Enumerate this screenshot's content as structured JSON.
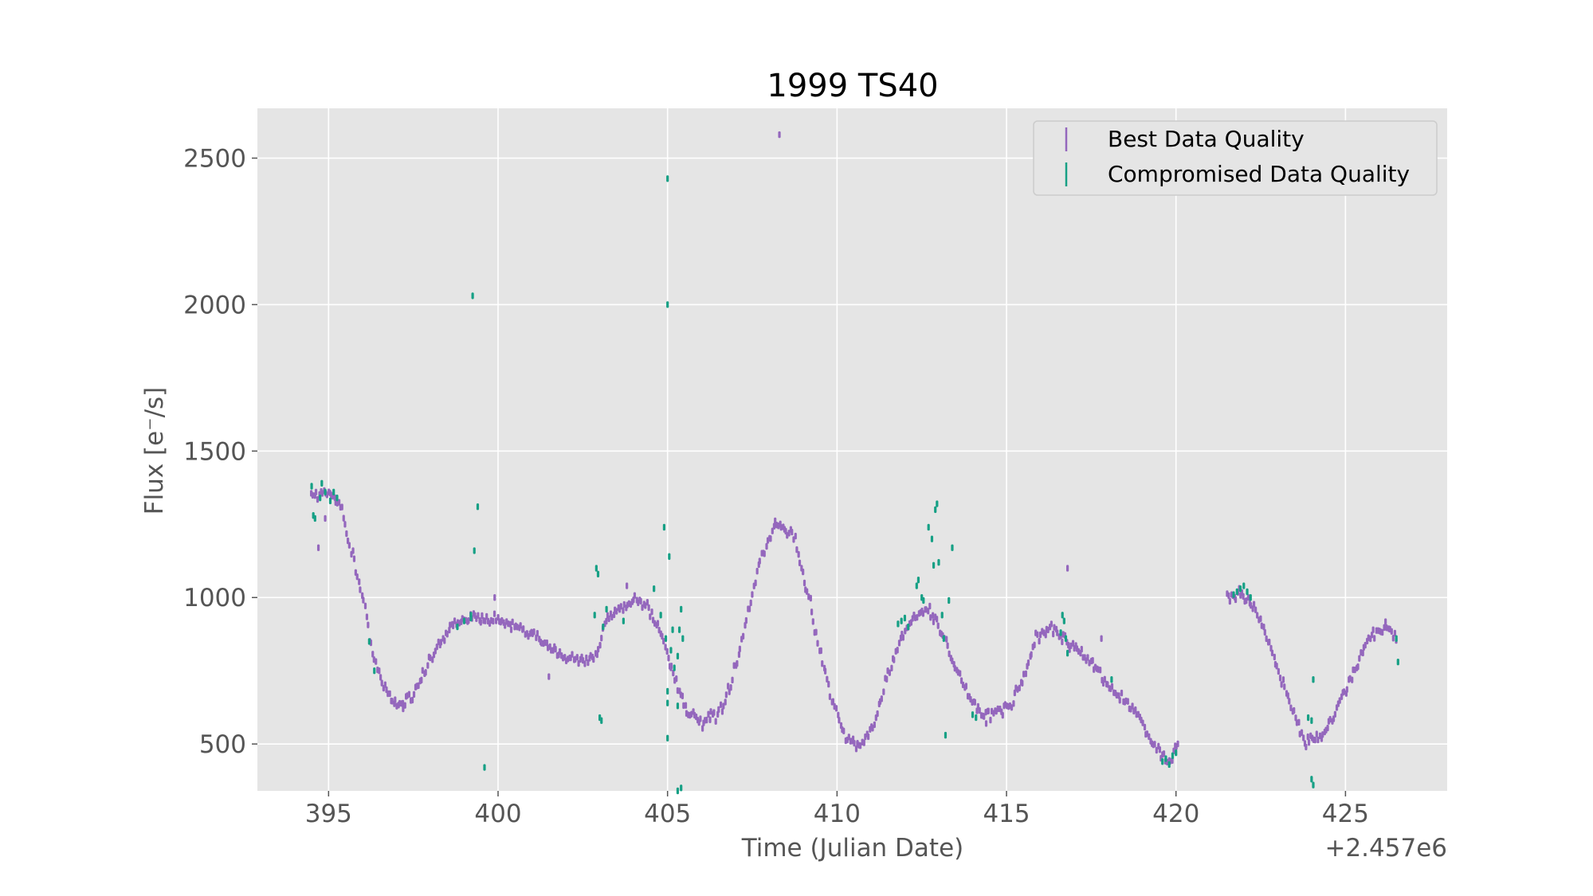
{
  "chart_data": {
    "type": "scatter",
    "title": "1999 TS40",
    "xlabel": "Time (Julian Date)",
    "ylabel": "Flux [e⁻/s]",
    "x_offset_label": "+2.457e6",
    "xlim": [
      392.9,
      428.0
    ],
    "ylim": [
      340,
      2670
    ],
    "x_ticks": [
      395,
      400,
      405,
      410,
      415,
      420,
      425
    ],
    "y_ticks": [
      500,
      1000,
      1500,
      2000,
      2500
    ],
    "grid": true,
    "background": "#e5e5e5",
    "legend_position": "top-right",
    "series": [
      {
        "name": "Best Data Quality",
        "color": "#9467bd",
        "segments": [
          {
            "from": 394.5,
            "to": 420.1,
            "step": 0.045,
            "noise": 18
          },
          {
            "from": 421.5,
            "to": 426.5,
            "step": 0.045,
            "noise": 18
          }
        ],
        "anchors": [
          [
            394.5,
            1350
          ],
          [
            395.0,
            1360
          ],
          [
            395.3,
            1330
          ],
          [
            395.7,
            1150
          ],
          [
            396.0,
            1000
          ],
          [
            396.3,
            820
          ],
          [
            396.6,
            700
          ],
          [
            397.0,
            630
          ],
          [
            397.4,
            660
          ],
          [
            397.8,
            740
          ],
          [
            398.2,
            830
          ],
          [
            398.6,
            900
          ],
          [
            399.0,
            930
          ],
          [
            399.5,
            930
          ],
          [
            400.0,
            920
          ],
          [
            400.5,
            900
          ],
          [
            401.0,
            870
          ],
          [
            401.5,
            830
          ],
          [
            402.0,
            800
          ],
          [
            402.5,
            790
          ],
          [
            402.9,
            800
          ],
          [
            403.2,
            930
          ],
          [
            403.6,
            960
          ],
          [
            404.0,
            1000
          ],
          [
            404.4,
            970
          ],
          [
            404.8,
            880
          ],
          [
            405.2,
            730
          ],
          [
            405.6,
            610
          ],
          [
            406.0,
            570
          ],
          [
            406.5,
            600
          ],
          [
            406.8,
            680
          ],
          [
            407.1,
            800
          ],
          [
            407.4,
            960
          ],
          [
            407.8,
            1150
          ],
          [
            408.2,
            1250
          ],
          [
            408.7,
            1220
          ],
          [
            409.1,
            1030
          ],
          [
            409.5,
            820
          ],
          [
            409.9,
            630
          ],
          [
            410.3,
            520
          ],
          [
            410.7,
            490
          ],
          [
            411.1,
            570
          ],
          [
            411.5,
            730
          ],
          [
            411.9,
            870
          ],
          [
            412.3,
            940
          ],
          [
            412.7,
            960
          ],
          [
            413.1,
            880
          ],
          [
            413.5,
            760
          ],
          [
            413.9,
            660
          ],
          [
            414.3,
            600
          ],
          [
            414.7,
            600
          ],
          [
            415.1,
            630
          ],
          [
            415.5,
            730
          ],
          [
            415.9,
            860
          ],
          [
            416.3,
            900
          ],
          [
            416.7,
            860
          ],
          [
            417.1,
            820
          ],
          [
            417.5,
            780
          ],
          [
            417.9,
            710
          ],
          [
            418.4,
            660
          ],
          [
            418.9,
            590
          ],
          [
            419.3,
            500
          ],
          [
            419.8,
            440
          ],
          [
            420.1,
            520
          ],
          [
            421.5,
            1000
          ],
          [
            421.9,
            1010
          ],
          [
            422.3,
            970
          ],
          [
            422.7,
            860
          ],
          [
            423.1,
            720
          ],
          [
            423.5,
            600
          ],
          [
            423.8,
            510
          ],
          [
            424.2,
            520
          ],
          [
            424.6,
            580
          ],
          [
            425.0,
            680
          ],
          [
            425.4,
            790
          ],
          [
            425.8,
            880
          ],
          [
            426.2,
            900
          ],
          [
            426.5,
            860
          ]
        ],
        "outliers": [
          [
            394.7,
            1170
          ],
          [
            394.9,
            1270
          ],
          [
            397.2,
            620
          ],
          [
            399.9,
            1000
          ],
          [
            401.5,
            730
          ],
          [
            403.8,
            1040
          ],
          [
            405.1,
            760
          ],
          [
            408.3,
            2580
          ],
          [
            416.8,
            1100
          ],
          [
            417.8,
            860
          ],
          [
            410.6,
            500
          ],
          [
            414.4,
            570
          ]
        ]
      },
      {
        "name": "Compromised Data Quality",
        "color": "#16a085",
        "points": [
          [
            394.5,
            1380
          ],
          [
            394.55,
            1280
          ],
          [
            394.6,
            1270
          ],
          [
            394.75,
            1340
          ],
          [
            394.8,
            1390
          ],
          [
            394.9,
            1360
          ],
          [
            395.05,
            1330
          ],
          [
            395.15,
            1360
          ],
          [
            395.25,
            1340
          ],
          [
            396.2,
            850
          ],
          [
            396.35,
            750
          ],
          [
            398.8,
            900
          ],
          [
            399.0,
            920
          ],
          [
            399.2,
            930
          ],
          [
            399.25,
            2030
          ],
          [
            399.3,
            1160
          ],
          [
            399.4,
            1310
          ],
          [
            399.6,
            420
          ],
          [
            399.2,
            940
          ],
          [
            402.85,
            940
          ],
          [
            402.9,
            1100
          ],
          [
            402.95,
            1080
          ],
          [
            403.0,
            590
          ],
          [
            403.05,
            580
          ],
          [
            403.1,
            900
          ],
          [
            403.2,
            960
          ],
          [
            403.7,
            920
          ],
          [
            404.6,
            1030
          ],
          [
            404.8,
            940
          ],
          [
            404.9,
            1240
          ],
          [
            404.95,
            860
          ],
          [
            405.0,
            520
          ],
          [
            405.0,
            640
          ],
          [
            405.0,
            680
          ],
          [
            405.0,
            2430
          ],
          [
            405.0,
            2000
          ],
          [
            405.05,
            1140
          ],
          [
            405.1,
            820
          ],
          [
            405.15,
            890
          ],
          [
            405.2,
            760
          ],
          [
            405.3,
            800
          ],
          [
            405.35,
            890
          ],
          [
            405.4,
            960
          ],
          [
            405.45,
            860
          ],
          [
            405.3,
            630
          ],
          [
            405.3,
            340
          ],
          [
            405.4,
            350
          ],
          [
            411.8,
            910
          ],
          [
            411.9,
            920
          ],
          [
            412.0,
            930
          ],
          [
            412.1,
            900
          ],
          [
            412.35,
            1040
          ],
          [
            412.4,
            1060
          ],
          [
            412.5,
            1000
          ],
          [
            412.55,
            990
          ],
          [
            412.7,
            1240
          ],
          [
            412.8,
            1200
          ],
          [
            412.85,
            1110
          ],
          [
            412.9,
            1300
          ],
          [
            412.95,
            1320
          ],
          [
            413.0,
            1120
          ],
          [
            413.1,
            940
          ],
          [
            413.15,
            860
          ],
          [
            413.2,
            530
          ],
          [
            413.3,
            990
          ],
          [
            413.4,
            1170
          ],
          [
            414.0,
            600
          ],
          [
            414.1,
            590
          ],
          [
            416.6,
            880
          ],
          [
            416.65,
            940
          ],
          [
            416.7,
            920
          ],
          [
            416.75,
            860
          ],
          [
            416.8,
            810
          ],
          [
            418.1,
            720
          ],
          [
            419.6,
            440
          ],
          [
            419.7,
            450
          ],
          [
            419.8,
            430
          ],
          [
            419.9,
            460
          ],
          [
            420.0,
            470
          ],
          [
            421.7,
            1010
          ],
          [
            421.8,
            1020
          ],
          [
            421.9,
            1030
          ],
          [
            422.0,
            1040
          ],
          [
            422.1,
            1020
          ],
          [
            422.2,
            1000
          ],
          [
            423.9,
            590
          ],
          [
            424.0,
            580
          ],
          [
            424.05,
            720
          ],
          [
            424.0,
            380
          ],
          [
            424.05,
            360
          ],
          [
            426.5,
            860
          ],
          [
            426.55,
            780
          ]
        ]
      }
    ]
  }
}
